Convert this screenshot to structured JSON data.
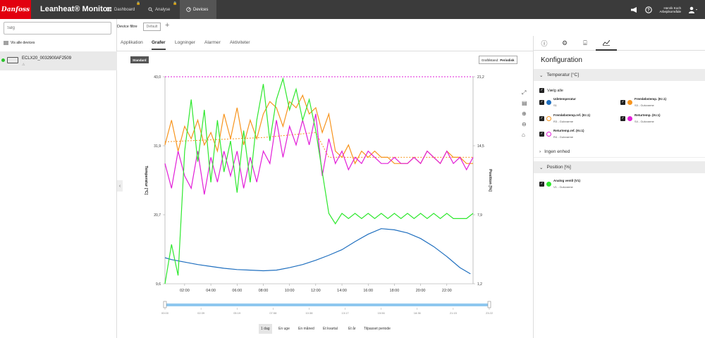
{
  "topbar": {
    "logo": "Danfoss",
    "title": "Leanheat® Monitor",
    "tabs": [
      {
        "label": "Dashboard"
      },
      {
        "label": "Analyse"
      },
      {
        "label": "Devices"
      }
    ],
    "user_line1": "Henrik Koch",
    "user_line2": "Arbejdsområde"
  },
  "left": {
    "search_placeholder": "Søg",
    "show_all": "Vis alle devices",
    "device_name": "ECLX20_0032900AF2509",
    "device_sub": "⚠"
  },
  "filter": {
    "label": "Device filtre",
    "default": "Default",
    "add": "+"
  },
  "tabs": [
    "Applikation",
    "Grafer",
    "Logninger",
    "Alarmer",
    "Aktiviteter"
  ],
  "chart_header": {
    "badge": "Standard",
    "state_label": "Graftilstand:",
    "state_value": "Periodisk"
  },
  "range_buttons": [
    "1 dag",
    "En uge",
    "En måned",
    "Et kvartal",
    "Et år",
    "Tilpasset periode"
  ],
  "right": {
    "title": "Konfiguration",
    "sec_temp": "Temperatur [°C]",
    "select_all": "Vælg alle",
    "sec_none": "Ingen enhed",
    "sec_pos": "Position [%]",
    "temp_series": [
      {
        "name": "Udetemperatur",
        "sub": "S1",
        "color": "#1f6fbf"
      },
      {
        "name": "Fremløbstemp. (Kr.1)",
        "sub": "S3 - Gulvvarme",
        "color": "#f7941d"
      },
      {
        "name": "Fremløbstemp.ref. (Kr.1)",
        "sub": "R3 - Gulvvarme",
        "color": "#f7941d"
      },
      {
        "name": "Returtemp. (Kr.1)",
        "sub": "S4 - Gulvvarme",
        "color": "#e21ed8"
      },
      {
        "name": "Returtemp.ref. (Kr.1)",
        "sub": "R4 - Gulvvarme",
        "color": "#e21ed8"
      }
    ],
    "pos_series": [
      {
        "name": "Analog ventil (V1)",
        "sub": "V1 - Gulvvarme",
        "color": "#2ee82e"
      }
    ]
  },
  "chart_data": {
    "type": "line",
    "ylabel": "Temperatur [°C]",
    "y2label": "Position [%]",
    "y_ticks": [
      "9,6",
      "20,7",
      "31,9",
      "43,0"
    ],
    "ylim": [
      9.6,
      43.0
    ],
    "y2_ticks": [
      "1,2",
      "7,9",
      "14,5",
      "21,2"
    ],
    "y2lim": [
      1.2,
      21.2
    ],
    "x_ticks": [
      "02:00",
      "04:00",
      "06:00",
      "08:00",
      "10:00",
      "12:00",
      "14:00",
      "16:00",
      "18:00",
      "20:00",
      "22:00"
    ],
    "xlim": [
      0.5,
      24
    ],
    "nav_ticks": [
      "00:00",
      "02:39",
      "05:19",
      "07:58",
      "10:38",
      "13:17",
      "15:56",
      "18:36",
      "21:15",
      "23:22"
    ],
    "series": [
      {
        "name": "Udetemperatur",
        "color": "#1f6fbf",
        "axis": "left",
        "x": [
          0.5,
          1,
          2,
          3,
          4,
          5,
          6,
          7,
          8,
          9,
          10,
          11,
          12,
          13,
          14,
          15,
          16,
          17,
          18,
          19,
          20,
          21,
          22,
          23,
          23.8
        ],
        "y": [
          13.8,
          13.5,
          13.1,
          12.7,
          12.4,
          12.1,
          11.9,
          11.8,
          11.7,
          11.8,
          12.2,
          12.7,
          13.4,
          14.2,
          15.1,
          16.4,
          17.6,
          18.5,
          18.3,
          17.8,
          16.9,
          15.6,
          14.0,
          12.2,
          11.2
        ]
      },
      {
        "name": "Fremløbstemp. (Kr.1)",
        "color": "#f7941d",
        "axis": "left",
        "x": [
          0.5,
          1,
          1.5,
          2,
          2.5,
          3,
          3.5,
          4,
          4.5,
          5,
          5.5,
          6,
          6.5,
          7,
          7.5,
          8,
          8.5,
          9,
          9.5,
          10,
          10.5,
          11,
          11.5,
          12,
          12.5,
          13,
          13.5,
          14,
          14.5,
          15,
          15.5,
          16,
          16.5,
          17,
          17.5,
          18,
          18.5,
          19,
          19.5,
          20,
          20.5,
          21,
          21.5,
          22,
          22.5,
          23,
          23.5,
          24
        ],
        "y": [
          32,
          36,
          31,
          35,
          33,
          36,
          32,
          34,
          31,
          37,
          33,
          38,
          32,
          36,
          33,
          37,
          39,
          38,
          35,
          39,
          38,
          40,
          37,
          38,
          34,
          37,
          31,
          30,
          32,
          29,
          31,
          30,
          31,
          30,
          30,
          29,
          29,
          29,
          30,
          29,
          31,
          30,
          29,
          31,
          30,
          30,
          29,
          29
        ]
      },
      {
        "name": "Fremløbstemp.ref. (Kr.1)",
        "color": "#f7941d",
        "axis": "left",
        "dashed": true,
        "x": [
          0.5,
          8,
          12,
          13,
          24
        ],
        "y": [
          32.5,
          33.2,
          34.0,
          30.0,
          30.0
        ]
      },
      {
        "name": "Returtemp. (Kr.1)",
        "color": "#e21ed8",
        "axis": "left",
        "x": [
          0.5,
          1,
          1.5,
          2,
          2.5,
          3,
          3.5,
          4,
          4.5,
          5,
          5.5,
          6,
          6.5,
          7,
          7.5,
          8,
          8.5,
          9,
          9.5,
          10,
          10.5,
          11,
          11.5,
          12,
          12.5,
          13,
          13.5,
          14,
          14.5,
          15,
          15.5,
          16,
          16.5,
          17,
          17.5,
          18,
          18.5,
          19,
          19.5,
          20,
          20.5,
          21,
          21.5,
          22,
          22.5,
          23,
          23.5,
          24
        ],
        "y": [
          29,
          25,
          31,
          27,
          25,
          31,
          24,
          30,
          26,
          31,
          27,
          31,
          25,
          30,
          26,
          31,
          29,
          36,
          30,
          35,
          32,
          36,
          32,
          37,
          27,
          33,
          29,
          31,
          28,
          30,
          29,
          31,
          30,
          29,
          29,
          30,
          29,
          29,
          30,
          29,
          31,
          30,
          29,
          31,
          29,
          30,
          28,
          30
        ]
      },
      {
        "name": "Returtemp.ref. (Kr.1)",
        "color": "#e21ed8",
        "axis": "left",
        "dashed": true,
        "x": [
          0.5,
          24
        ],
        "y": [
          43.0,
          43.0
        ]
      },
      {
        "name": "Analog ventil (V1)",
        "color": "#2ee82e",
        "axis": "right",
        "x": [
          0.5,
          1,
          1.5,
          2,
          2.5,
          3,
          3.5,
          4,
          4.5,
          5,
          5.5,
          6,
          6.5,
          7,
          7.5,
          8,
          8.5,
          9,
          9.5,
          10,
          10.5,
          11,
          11.5,
          12,
          12.5,
          13,
          13.5,
          14,
          14.5,
          15,
          15.5,
          16,
          16.5,
          17,
          17.5,
          18,
          18.5,
          19,
          19.5,
          20,
          20.5,
          21,
          21.5,
          22,
          22.5,
          23,
          23.5,
          24
        ],
        "y": [
          1.2,
          5,
          2,
          14,
          19,
          13,
          18,
          11,
          17,
          12,
          15,
          10,
          16,
          11,
          17,
          20.5,
          15,
          19,
          21,
          18,
          20,
          17,
          19,
          16,
          12,
          8,
          7,
          8,
          7.5,
          8,
          7.5,
          8,
          7.5,
          8,
          7.5,
          8,
          7.5,
          8,
          7.5,
          8,
          7.5,
          8,
          7.5,
          8,
          7.5,
          7.5,
          7.5,
          8
        ]
      }
    ]
  }
}
